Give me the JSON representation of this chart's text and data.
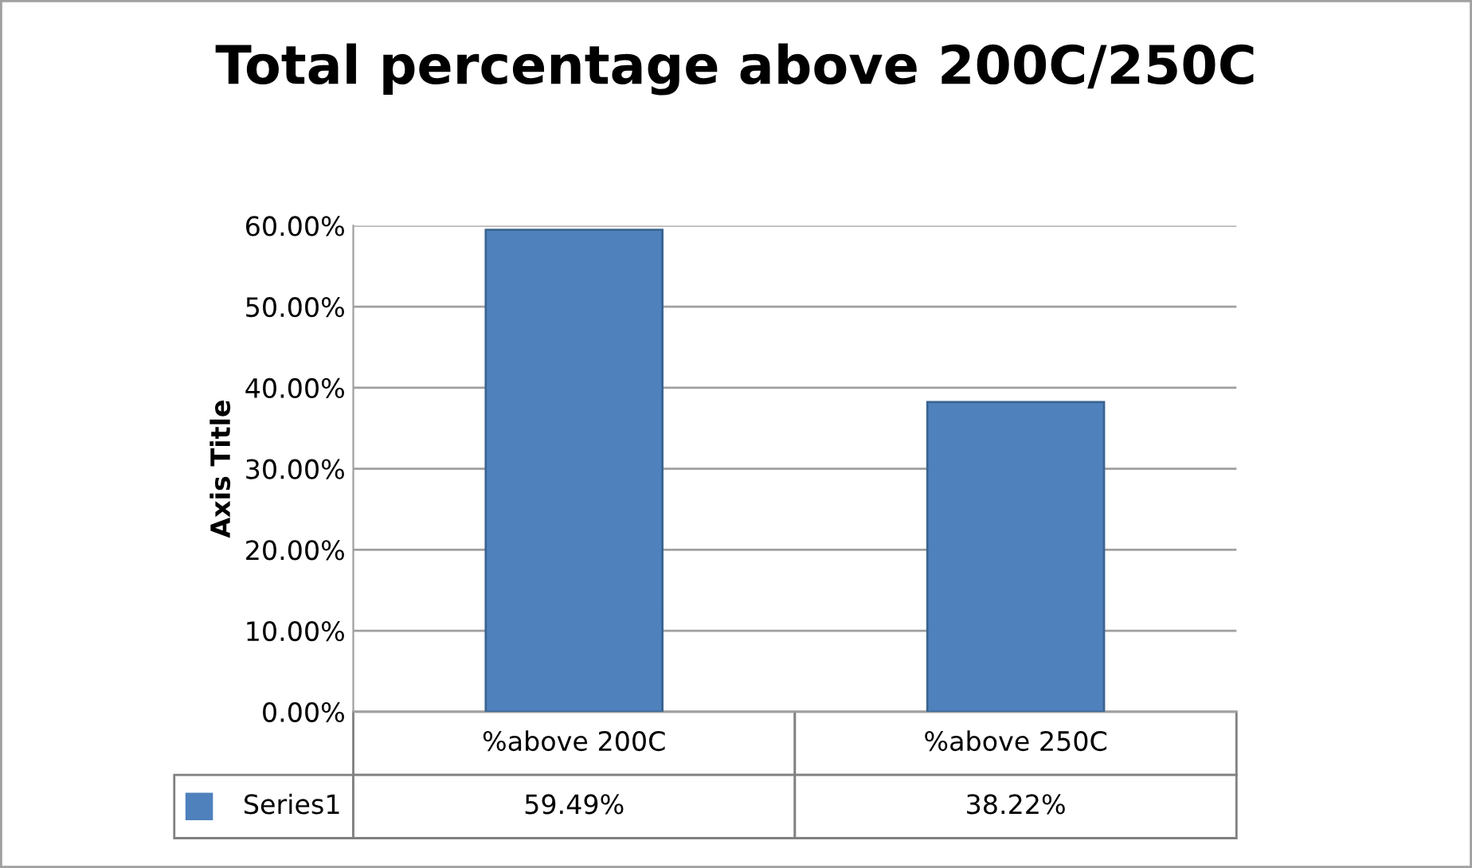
{
  "chart_data": {
    "type": "bar",
    "title": "Total percentage above 200C/250C",
    "ylabel": "Axis Title",
    "categories": [
      "%above 200C",
      "%above 250C"
    ],
    "series": [
      {
        "name": "Series1",
        "color": "#4f81bd",
        "values": [
          59.49,
          38.22
        ],
        "value_labels": [
          "59.49%",
          "38.22%"
        ]
      }
    ],
    "ylim": [
      0,
      60
    ],
    "yticks": [
      {
        "value": 0,
        "label": "0.00%"
      },
      {
        "value": 10,
        "label": "10.00%"
      },
      {
        "value": 20,
        "label": "20.00%"
      },
      {
        "value": 30,
        "label": "30.00%"
      },
      {
        "value": 40,
        "label": "40.00%"
      },
      {
        "value": 50,
        "label": "50.00%"
      },
      {
        "value": 60,
        "label": "60.00%"
      }
    ],
    "grid": "y",
    "legend": "bottom"
  }
}
